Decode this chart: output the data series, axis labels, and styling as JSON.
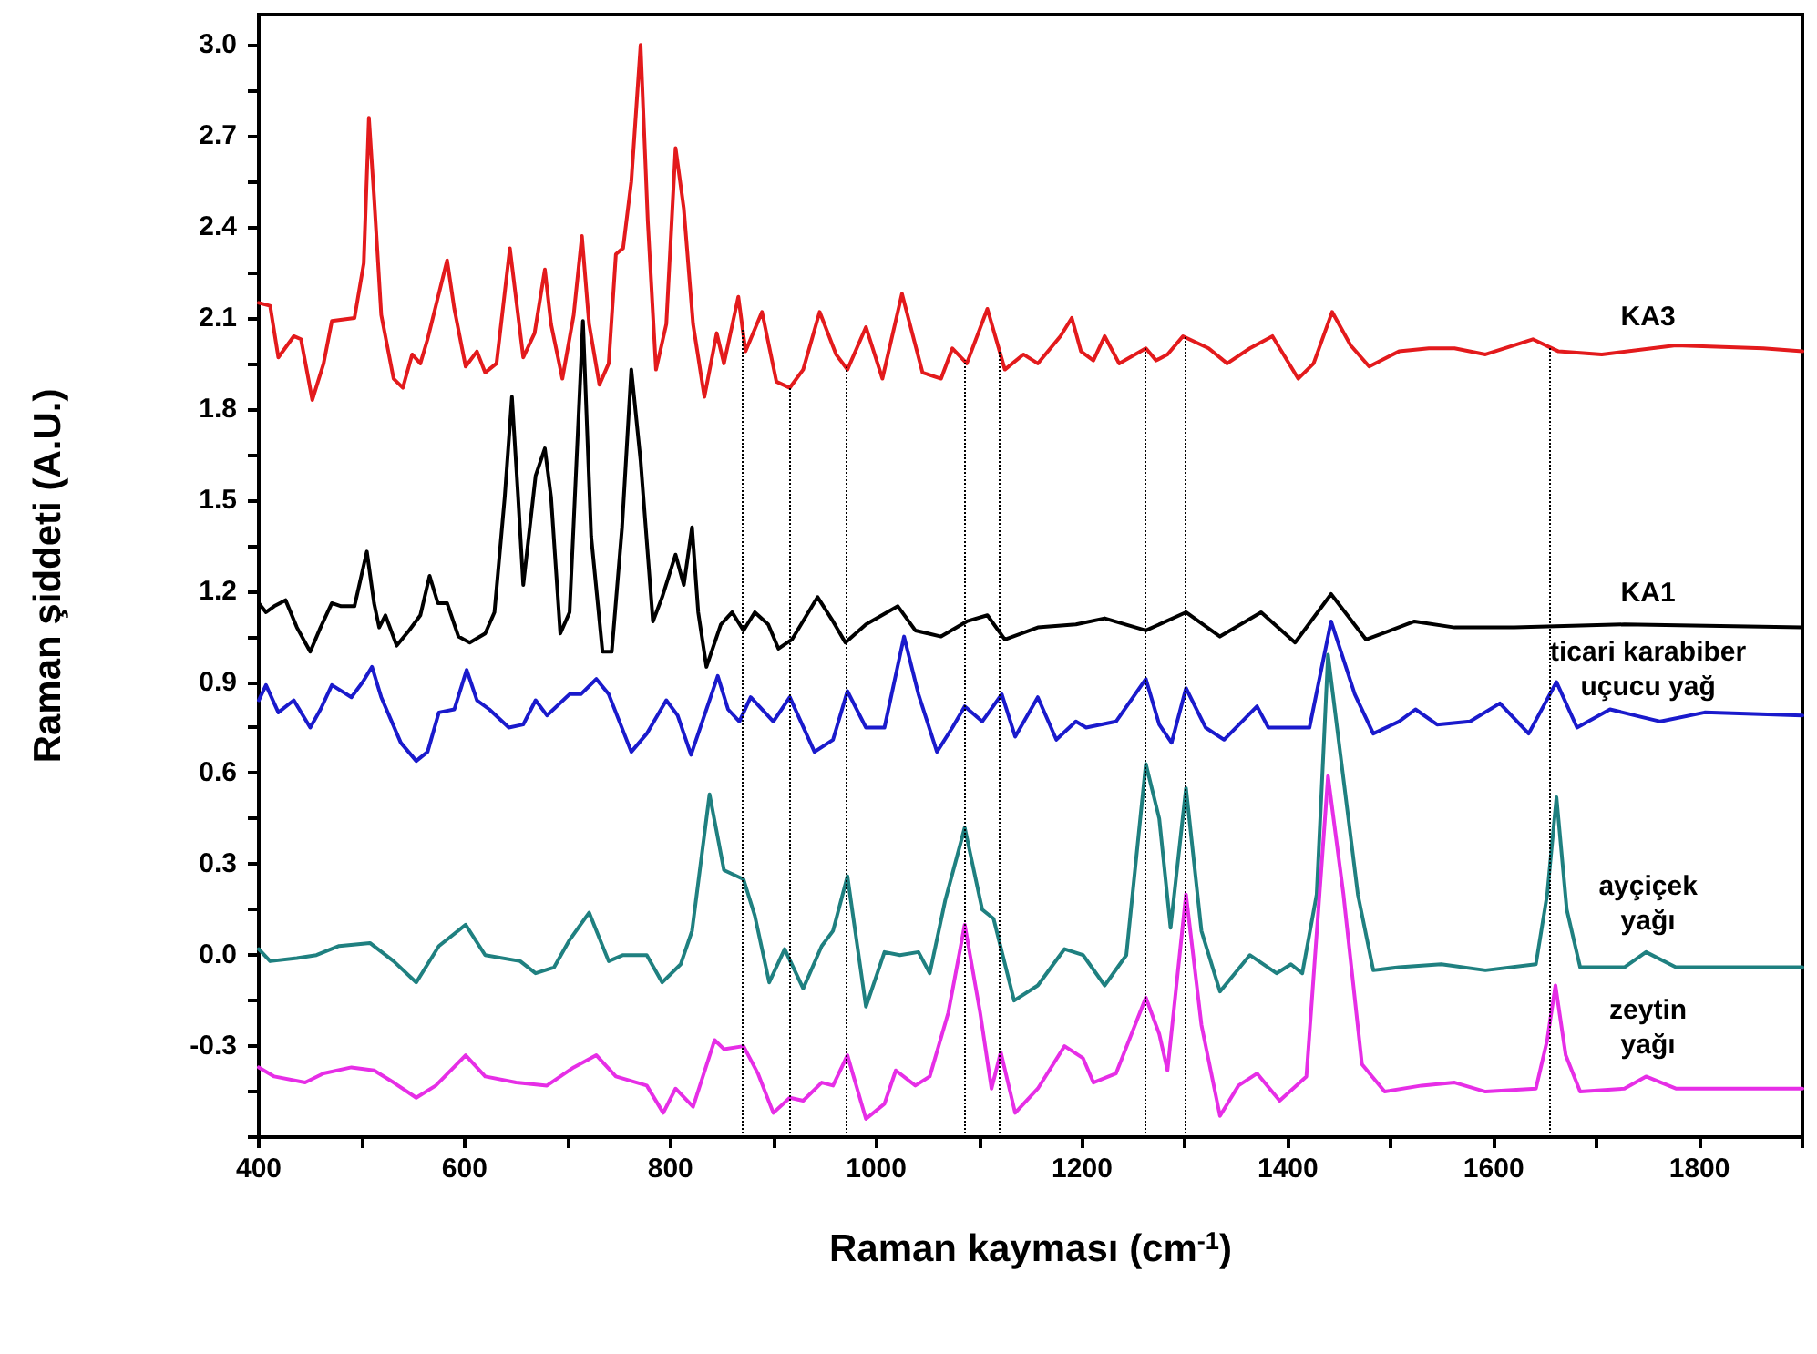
{
  "chart_data": {
    "type": "line",
    "xlabel": "Raman kayması (cm$^{-1}$)",
    "ylabel": "Raman şiddeti (A.U.)",
    "xlim": [
      400,
      1900
    ],
    "xticks": [
      400,
      600,
      800,
      1000,
      1200,
      1400,
      1600,
      1800
    ],
    "ylim": [
      -0.6,
      3.1
    ],
    "yticks": [
      {
        "value": -0.3,
        "label": "-0.3"
      },
      {
        "value": 0,
        "label": "0.0"
      },
      {
        "value": 0.3,
        "label": "0.3"
      },
      {
        "value": 0.6,
        "label": "0.6"
      },
      {
        "value": 0.9,
        "label": "0.9"
      },
      {
        "value": 1.2,
        "label": "1.2"
      },
      {
        "value": 1.5,
        "label": "1.5"
      },
      {
        "value": 1.8,
        "label": "1.8"
      },
      {
        "value": 2.1,
        "label": "2.1"
      },
      {
        "value": 2.4,
        "label": "2.4"
      },
      {
        "value": 2.7,
        "label": "2.7"
      },
      {
        "value": 3.0,
        "label": "3.0"
      }
    ],
    "grid": false,
    "legend": false,
    "marker": "none",
    "line_style": "solid",
    "series": [
      {
        "name": "KA3",
        "color": "#e31a1c",
        "x": [
          400,
          411,
          419,
          434,
          441,
          452,
          463,
          471,
          493,
          502,
          507,
          512,
          519,
          531,
          540,
          549,
          557,
          564,
          583,
          590,
          601,
          612,
          620,
          631,
          644,
          657,
          668,
          678,
          684,
          695,
          706,
          714,
          721,
          731,
          740,
          747,
          754,
          762,
          771,
          778,
          786,
          796,
          805,
          813,
          822,
          833,
          845,
          852,
          866,
          873,
          889,
          903,
          916,
          929,
          945,
          961,
          972,
          990,
          1006,
          1025,
          1045,
          1063,
          1074,
          1088,
          1108,
          1125,
          1143,
          1157,
          1179,
          1190,
          1199,
          1211,
          1222,
          1236,
          1262,
          1272,
          1283,
          1298,
          1323,
          1341,
          1363,
          1385,
          1410,
          1425,
          1443,
          1461,
          1479,
          1508,
          1537,
          1562,
          1592,
          1638,
          1663,
          1705,
          1777,
          1862,
          1900
        ],
        "values": [
          2.15,
          2.14,
          1.97,
          2.04,
          2.03,
          1.83,
          1.95,
          2.09,
          2.1,
          2.28,
          2.76,
          2.5,
          2.11,
          1.9,
          1.87,
          1.98,
          1.95,
          2.03,
          2.29,
          2.13,
          1.94,
          1.99,
          1.92,
          1.95,
          2.33,
          1.97,
          2.05,
          2.26,
          2.08,
          1.9,
          2.11,
          2.37,
          2.08,
          1.88,
          1.95,
          2.31,
          2.33,
          2.55,
          3.0,
          2.42,
          1.93,
          2.08,
          2.66,
          2.46,
          2.08,
          1.84,
          2.05,
          1.95,
          2.17,
          1.99,
          2.12,
          1.89,
          1.87,
          1.93,
          2.12,
          1.98,
          1.93,
          2.07,
          1.9,
          2.18,
          1.92,
          1.9,
          2.0,
          1.95,
          2.13,
          1.93,
          1.98,
          1.95,
          2.04,
          2.1,
          1.99,
          1.96,
          2.04,
          1.95,
          2.0,
          1.96,
          1.98,
          2.04,
          2.0,
          1.95,
          2.0,
          2.04,
          1.9,
          1.95,
          2.12,
          2.01,
          1.94,
          1.99,
          2.0,
          2.0,
          1.98,
          2.03,
          1.99,
          1.98,
          2.01,
          2.0,
          1.99
        ]
      },
      {
        "name": "KA1",
        "color": "#000000",
        "x": [
          400,
          407,
          415,
          426,
          437,
          450,
          460,
          471,
          480,
          493,
          505,
          512,
          517,
          523,
          534,
          546,
          557,
          566,
          574,
          583,
          594,
          605,
          620,
          629,
          639,
          646,
          652,
          657,
          669,
          678,
          684,
          693,
          702,
          715,
          723,
          734,
          743,
          753,
          762,
          771,
          783,
          792,
          805,
          813,
          821,
          827,
          835,
          849,
          860,
          871,
          882,
          895,
          905,
          918,
          943,
          958,
          970,
          990,
          1021,
          1038,
          1063,
          1088,
          1108,
          1125,
          1157,
          1194,
          1222,
          1262,
          1301,
          1334,
          1374,
          1407,
          1442,
          1476,
          1523,
          1562,
          1620,
          1727,
          1900
        ],
        "values": [
          1.16,
          1.13,
          1.15,
          1.17,
          1.08,
          1.0,
          1.08,
          1.16,
          1.15,
          1.15,
          1.33,
          1.16,
          1.08,
          1.12,
          1.02,
          1.07,
          1.12,
          1.25,
          1.16,
          1.16,
          1.05,
          1.03,
          1.06,
          1.13,
          1.51,
          1.84,
          1.51,
          1.22,
          1.58,
          1.67,
          1.51,
          1.06,
          1.13,
          2.09,
          1.38,
          1.0,
          1.0,
          1.41,
          1.93,
          1.63,
          1.1,
          1.18,
          1.32,
          1.22,
          1.41,
          1.13,
          0.95,
          1.09,
          1.13,
          1.07,
          1.13,
          1.09,
          1.01,
          1.04,
          1.18,
          1.1,
          1.03,
          1.09,
          1.15,
          1.07,
          1.05,
          1.1,
          1.12,
          1.04,
          1.08,
          1.09,
          1.11,
          1.07,
          1.13,
          1.05,
          1.13,
          1.03,
          1.19,
          1.04,
          1.1,
          1.08,
          1.08,
          1.09,
          1.08
        ]
      },
      {
        "name": "ticari karabiber\nuçucu yağ",
        "color": "#1a1acc",
        "x": [
          400,
          407,
          419,
          434,
          450,
          460,
          471,
          490,
          501,
          510,
          519,
          538,
          553,
          564,
          575,
          590,
          602,
          612,
          624,
          643,
          657,
          669,
          680,
          702,
          713,
          728,
          740,
          762,
          777,
          796,
          807,
          820,
          829,
          846,
          856,
          867,
          878,
          900,
          916,
          940,
          958,
          972,
          990,
          1008,
          1027,
          1041,
          1059,
          1074,
          1086,
          1103,
          1122,
          1135,
          1157,
          1175,
          1194,
          1204,
          1233,
          1262,
          1275,
          1287,
          1301,
          1320,
          1338,
          1370,
          1381,
          1421,
          1442,
          1465,
          1483,
          1508,
          1524,
          1545,
          1577,
          1606,
          1634,
          1661,
          1681,
          1713,
          1762,
          1805,
          1900
        ],
        "values": [
          0.84,
          0.89,
          0.8,
          0.84,
          0.75,
          0.81,
          0.89,
          0.85,
          0.9,
          0.95,
          0.85,
          0.7,
          0.64,
          0.67,
          0.8,
          0.81,
          0.94,
          0.84,
          0.81,
          0.75,
          0.76,
          0.84,
          0.79,
          0.86,
          0.86,
          0.91,
          0.86,
          0.67,
          0.73,
          0.84,
          0.79,
          0.66,
          0.75,
          0.92,
          0.81,
          0.77,
          0.85,
          0.77,
          0.85,
          0.67,
          0.71,
          0.87,
          0.75,
          0.75,
          1.05,
          0.86,
          0.67,
          0.75,
          0.82,
          0.77,
          0.86,
          0.72,
          0.85,
          0.71,
          0.77,
          0.75,
          0.77,
          0.91,
          0.76,
          0.7,
          0.88,
          0.75,
          0.71,
          0.82,
          0.75,
          0.75,
          1.1,
          0.86,
          0.73,
          0.77,
          0.81,
          0.76,
          0.77,
          0.83,
          0.73,
          0.9,
          0.75,
          0.81,
          0.77,
          0.8,
          0.79
        ]
      },
      {
        "name": "ayçiçek\nyağı",
        "color": "#1f8080",
        "x": [
          400,
          411,
          437,
          456,
          478,
          508,
          531,
          553,
          575,
          601,
          620,
          654,
          669,
          687,
          702,
          721,
          740,
          754,
          777,
          792,
          810,
          821,
          838,
          852,
          871,
          882,
          896,
          911,
          929,
          947,
          958,
          972,
          990,
          1008,
          1023,
          1041,
          1052,
          1067,
          1086,
          1103,
          1114,
          1134,
          1157,
          1183,
          1201,
          1222,
          1243,
          1262,
          1275,
          1286,
          1301,
          1316,
          1334,
          1363,
          1389,
          1403,
          1414,
          1428,
          1439,
          1450,
          1468,
          1483,
          1508,
          1549,
          1592,
          1641,
          1652,
          1661,
          1671,
          1684,
          1727,
          1748,
          1777,
          1900
        ],
        "values": [
          0.02,
          -0.02,
          -0.01,
          0.0,
          0.03,
          0.04,
          -0.02,
          -0.09,
          0.03,
          0.1,
          0.0,
          -0.02,
          -0.06,
          -0.04,
          0.05,
          0.14,
          -0.02,
          0.0,
          0.0,
          -0.09,
          -0.03,
          0.08,
          0.53,
          0.28,
          0.25,
          0.13,
          -0.09,
          0.02,
          -0.11,
          0.03,
          0.08,
          0.26,
          -0.17,
          0.01,
          0.0,
          0.01,
          -0.06,
          0.18,
          0.42,
          0.15,
          0.12,
          -0.15,
          -0.1,
          0.02,
          0.0,
          -0.1,
          0.0,
          0.63,
          0.45,
          0.09,
          0.55,
          0.08,
          -0.12,
          0.0,
          -0.06,
          -0.03,
          -0.06,
          0.2,
          0.99,
          0.69,
          0.2,
          -0.05,
          -0.04,
          -0.03,
          -0.05,
          -0.03,
          0.2,
          0.52,
          0.15,
          -0.04,
          -0.04,
          0.01,
          -0.04,
          -0.04
        ]
      },
      {
        "name": "zeytin\nyağı",
        "color": "#e62ee6",
        "x": [
          400,
          415,
          445,
          463,
          490,
          512,
          531,
          553,
          572,
          601,
          620,
          650,
          680,
          706,
          728,
          747,
          777,
          793,
          805,
          822,
          843,
          852,
          871,
          885,
          900,
          916,
          929,
          947,
          958,
          972,
          990,
          1008,
          1019,
          1038,
          1052,
          1070,
          1086,
          1101,
          1112,
          1121,
          1135,
          1157,
          1183,
          1201,
          1211,
          1233,
          1262,
          1275,
          1283,
          1301,
          1316,
          1334,
          1352,
          1370,
          1392,
          1418,
          1439,
          1454,
          1472,
          1494,
          1530,
          1562,
          1592,
          1641,
          1652,
          1660,
          1670,
          1684,
          1727,
          1748,
          1777,
          1900
        ],
        "values": [
          -0.37,
          -0.4,
          -0.42,
          -0.39,
          -0.37,
          -0.38,
          -0.42,
          -0.47,
          -0.43,
          -0.33,
          -0.4,
          -0.42,
          -0.43,
          -0.37,
          -0.33,
          -0.4,
          -0.43,
          -0.52,
          -0.44,
          -0.5,
          -0.28,
          -0.31,
          -0.3,
          -0.39,
          -0.52,
          -0.47,
          -0.48,
          -0.42,
          -0.43,
          -0.33,
          -0.54,
          -0.49,
          -0.38,
          -0.43,
          -0.4,
          -0.19,
          0.1,
          -0.19,
          -0.44,
          -0.32,
          -0.52,
          -0.44,
          -0.3,
          -0.34,
          -0.42,
          -0.39,
          -0.14,
          -0.26,
          -0.38,
          0.2,
          -0.23,
          -0.53,
          -0.43,
          -0.39,
          -0.48,
          -0.4,
          0.59,
          0.2,
          -0.36,
          -0.45,
          -0.43,
          -0.42,
          -0.45,
          -0.44,
          -0.28,
          -0.1,
          -0.33,
          -0.45,
          -0.44,
          -0.4,
          -0.44,
          -0.44
        ]
      }
    ],
    "ref_lines": [
      {
        "axis": "x",
        "value": 870,
        "color": "#000000",
        "line_style": "dotted"
      },
      {
        "axis": "x",
        "value": 915,
        "color": "#000000",
        "line_style": "dotted"
      },
      {
        "axis": "x",
        "value": 970,
        "color": "#000000",
        "line_style": "dotted"
      },
      {
        "axis": "x",
        "value": 1085,
        "color": "#000000",
        "line_style": "dotted"
      },
      {
        "axis": "x",
        "value": 1120,
        "color": "#000000",
        "line_style": "dotted"
      },
      {
        "axis": "x",
        "value": 1262,
        "color": "#000000",
        "line_style": "dotted"
      },
      {
        "axis": "x",
        "value": 1300,
        "color": "#000000",
        "line_style": "dotted"
      },
      {
        "axis": "x",
        "value": 1655,
        "color": "#000000",
        "line_style": "dotted"
      }
    ]
  }
}
